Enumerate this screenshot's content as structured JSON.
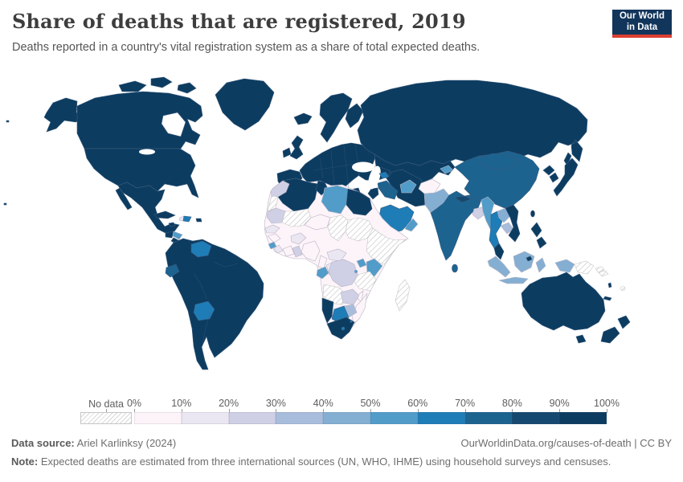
{
  "header": {
    "title": "Share of deaths that are registered, 2019",
    "subtitle": "Deaths reported in a country's vital registration system as a share of total expected deaths.",
    "logo": {
      "line1": "Our World",
      "line2": "in Data",
      "bg_color": "#12355b",
      "accent_color": "#dc3e32"
    }
  },
  "footer": {
    "data_source_label": "Data source:",
    "data_source_value": " Ariel Karlinksy (2024)",
    "citation": "OurWorldinData.org/causes-of-death | CC BY",
    "note_label": "Note:",
    "note_text": " Expected deaths are estimated from three international sources (UN, WHO, IHME) using household surveys and censuses."
  },
  "chart_data": {
    "type": "choropleth",
    "title": "Share of deaths that are registered, 2019",
    "subtitle": "Deaths reported in a country's vital registration system as a share of total expected deaths.",
    "year": 2019,
    "unit": "%",
    "legend": {
      "no_data_label": "No data",
      "ticks": [
        "0%",
        "10%",
        "20%",
        "30%",
        "40%",
        "50%",
        "60%",
        "70%",
        "80%",
        "90%",
        "100%"
      ],
      "bins": [
        {
          "range": "0-10",
          "color": "#fcf4f9"
        },
        {
          "range": "10-20",
          "color": "#eae6f2"
        },
        {
          "range": "20-30",
          "color": "#cfcfe5"
        },
        {
          "range": "30-40",
          "color": "#a7bddb"
        },
        {
          "range": "40-50",
          "color": "#84afd3"
        },
        {
          "range": "50-60",
          "color": "#519cc9"
        },
        {
          "range": "60-70",
          "color": "#1e7db7"
        },
        {
          "range": "70-80",
          "color": "#1d6390"
        },
        {
          "range": "80-90",
          "color": "#164970"
        },
        {
          "range": "90-100",
          "color": "#0d3c61"
        }
      ]
    },
    "regions": {
      "canada": "90-100",
      "united_states": "90-100",
      "greenland": "90-100",
      "iceland": "90-100",
      "mexico": "90-100",
      "guatemala": "90-100",
      "honduras": "50-60",
      "nicaragua": "90-100",
      "costa_rica": "90-100",
      "panama": "90-100",
      "cuba": "90-100",
      "jamaica": "90-100",
      "haiti": "10-20",
      "dominican_republic": "60-70",
      "puerto_rico": "90-100",
      "colombia": "90-100",
      "venezuela": "60-70",
      "guyana": "90-100",
      "suriname": "90-100",
      "ecuador": "70-80",
      "peru": "90-100",
      "brazil": "90-100",
      "bolivia": "60-70",
      "paraguay": "90-100",
      "chile": "90-100",
      "argentina": "90-100",
      "uruguay": "90-100",
      "united_kingdom": "90-100",
      "ireland": "90-100",
      "norway": "90-100",
      "sweden": "90-100",
      "finland": "90-100",
      "france": "90-100",
      "germany": "90-100",
      "spain": "90-100",
      "portugal": "90-100",
      "italy": "90-100",
      "greece": "90-100",
      "poland": "90-100",
      "ukraine": "90-100",
      "romania": "90-100",
      "russia": "90-100",
      "turkey": "90-100",
      "kazakhstan": "90-100",
      "uzbekistan": "90-100",
      "turkmenistan": "50-60",
      "kyrgyzstan": "50-60",
      "azerbaijan": "60-70",
      "iran": "90-100",
      "iraq": "70-80",
      "syria": "70-80",
      "israel": "90-100",
      "jordan": "90-100",
      "saudi_arabia": "60-70",
      "yemen": "40-50",
      "oman": "50-60",
      "afghanistan": "0-10",
      "pakistan": "40-50",
      "india": "70-80",
      "nepal": "80-90",
      "bangladesh": "20-30",
      "sri_lanka": "70-80",
      "china": "70-80",
      "mongolia": "70-80",
      "north_korea": "90-100",
      "south_korea": "90-100",
      "japan": "90-100",
      "taiwan": "90-100",
      "myanmar": "50-60",
      "thailand": "60-70",
      "laos": "40-50",
      "cambodia": "30-40",
      "vietnam": "90-100",
      "malaysia": "90-100",
      "brunei": "90-100",
      "indonesia": "40-50",
      "philippines": "90-100",
      "papua_new_guinea": "no-data",
      "australia": "90-100",
      "new_zealand": "90-100",
      "fiji": "no-data",
      "solomon_islands": "no-data",
      "vanuatu": "90-100",
      "new_caledonia": "90-100",
      "morocco": "20-30",
      "western_sahara": "no-data",
      "algeria": "90-100",
      "tunisia": "90-100",
      "libya": "50-60",
      "egypt": "90-100",
      "mauritania": "20-30",
      "mali": "no-data",
      "niger": "0-10",
      "chad": "no-data",
      "sudan": "no-data",
      "eritrea": "no-data",
      "ethiopia": "no-data",
      "somalia": "no-data",
      "senegal": "10-20",
      "guinea": "0-10",
      "sierra_leone": "50-60",
      "liberia": "10-20",
      "cote_divoire": "0-10",
      "ghana": "20-30",
      "burkina_faso": "10-20",
      "nigeria": "0-10",
      "cameroon": "0-10",
      "central_african_republic": "10-20",
      "gabon": "50-60",
      "republic_of_congo": "10-20",
      "democratic_republic_of_congo": "20-30",
      "uganda": "50-60",
      "rwanda": "50-60",
      "kenya": "50-60",
      "tanzania": "no-data",
      "angola": "no-data",
      "zambia": "20-30",
      "malawi": "0-10",
      "mozambique": "0-10",
      "zimbabwe": "30-40",
      "botswana": "60-70",
      "namibia": "90-100",
      "south_africa": "90-100",
      "lesotho": "60-70",
      "eswatini": "60-70",
      "madagascar": "no-data"
    }
  }
}
